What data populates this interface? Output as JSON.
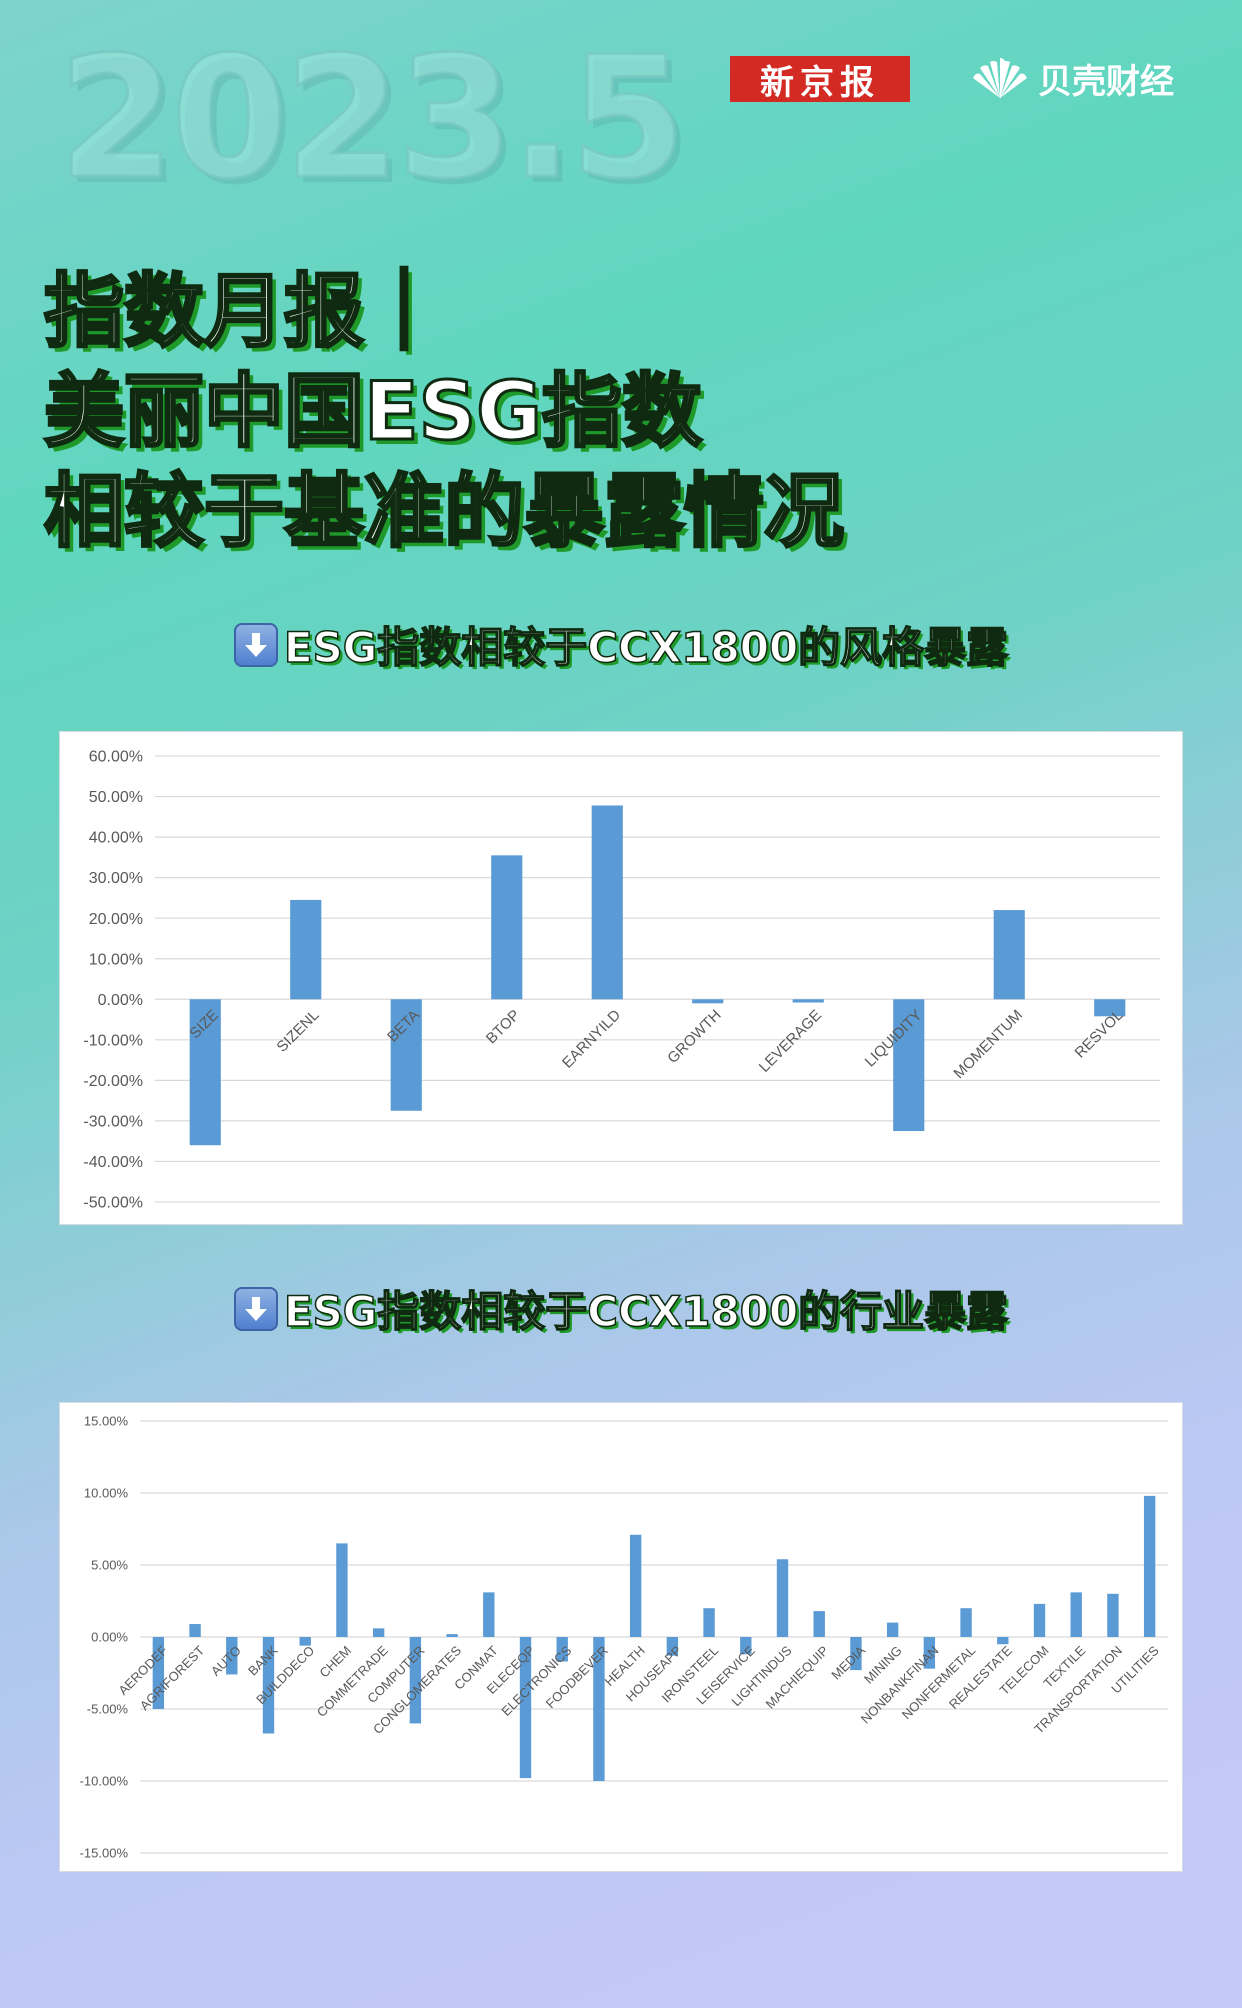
{
  "header": {
    "year": "2023.5",
    "logo_xjb": "新京报",
    "logo_bk": "贝壳财经",
    "headline_lines": [
      "指数月报｜",
      "美丽中国ESG指数",
      "相较于基准的暴露情况"
    ]
  },
  "sections": [
    {
      "title": "ESG指数相较于CCX1800的风格暴露",
      "arrow_icon": "down-arrow-icon"
    },
    {
      "title": "ESG指数相较于CCX1800的行业暴露",
      "arrow_icon": "down-arrow-icon"
    }
  ],
  "colors": {
    "bar": "#5b9bd5",
    "grid": "#d9d9d9",
    "axis_text": "#595959",
    "logo_red": "#d42a24"
  },
  "chart_data": [
    {
      "type": "bar",
      "title": "",
      "categories": [
        "SIZE",
        "SIZENL",
        "BETA",
        "BTOP",
        "EARNYILD",
        "GROWTH",
        "LEVERAGE",
        "LIQUIDITY",
        "MOMENTUM",
        "RESVOL"
      ],
      "values": [
        -36.0,
        24.5,
        -27.5,
        35.5,
        47.8,
        -1.0,
        -0.8,
        -32.5,
        22.0,
        -4.2
      ],
      "ylim": [
        -50,
        60
      ],
      "yticks": [
        60,
        50,
        40,
        30,
        20,
        10,
        0,
        -10,
        -20,
        -30,
        -40,
        -50
      ],
      "ytick_labels": [
        "60.00%",
        "50.00%",
        "40.00%",
        "30.00%",
        "20.00%",
        "10.00%",
        "0.00%",
        "-10.00%",
        "-20.00%",
        "-30.00%",
        "-40.00%",
        "-50.00%"
      ],
      "grid": true,
      "xlabel": "",
      "ylabel": ""
    },
    {
      "type": "bar",
      "title": "",
      "categories": [
        "AERODEF",
        "AGRIFOREST",
        "AUTO",
        "BANK",
        "BUILDDECO",
        "CHEM",
        "COMMETRADE",
        "COMPUTER",
        "CONGLOMERATES",
        "CONMAT",
        "ELECEQP",
        "ELECTRONICS",
        "FOODBEVER",
        "HEALTH",
        "HOUSEAPP",
        "IRONSTEEL",
        "LEISERVICE",
        "LIGHTINDUS",
        "MACHIEQUIP",
        "MEDIA",
        "MINING",
        "NONBANKFINAN",
        "NONFERMETAL",
        "REALESTATE",
        "TELECOM",
        "TEXTILE",
        "TRANSPORTATION",
        "UTILITIES"
      ],
      "values": [
        -5.0,
        0.9,
        -2.6,
        -6.7,
        -0.6,
        6.5,
        0.6,
        -6.0,
        0.2,
        3.1,
        -9.8,
        -1.7,
        -10.0,
        7.1,
        -1.3,
        2.0,
        -1.2,
        5.4,
        1.8,
        -2.3,
        1.0,
        -2.2,
        2.0,
        -0.5,
        2.3,
        3.1,
        3.0,
        9.8
      ],
      "ylim": [
        -15,
        15
      ],
      "yticks": [
        15,
        10,
        5,
        0,
        -5,
        -10,
        -15
      ],
      "ytick_labels": [
        "15.00%",
        "10.00%",
        "5.00%",
        "0.00%",
        "-5.00%",
        "-10.00%",
        "-15.00%"
      ],
      "grid": true,
      "xlabel": "",
      "ylabel": ""
    }
  ]
}
